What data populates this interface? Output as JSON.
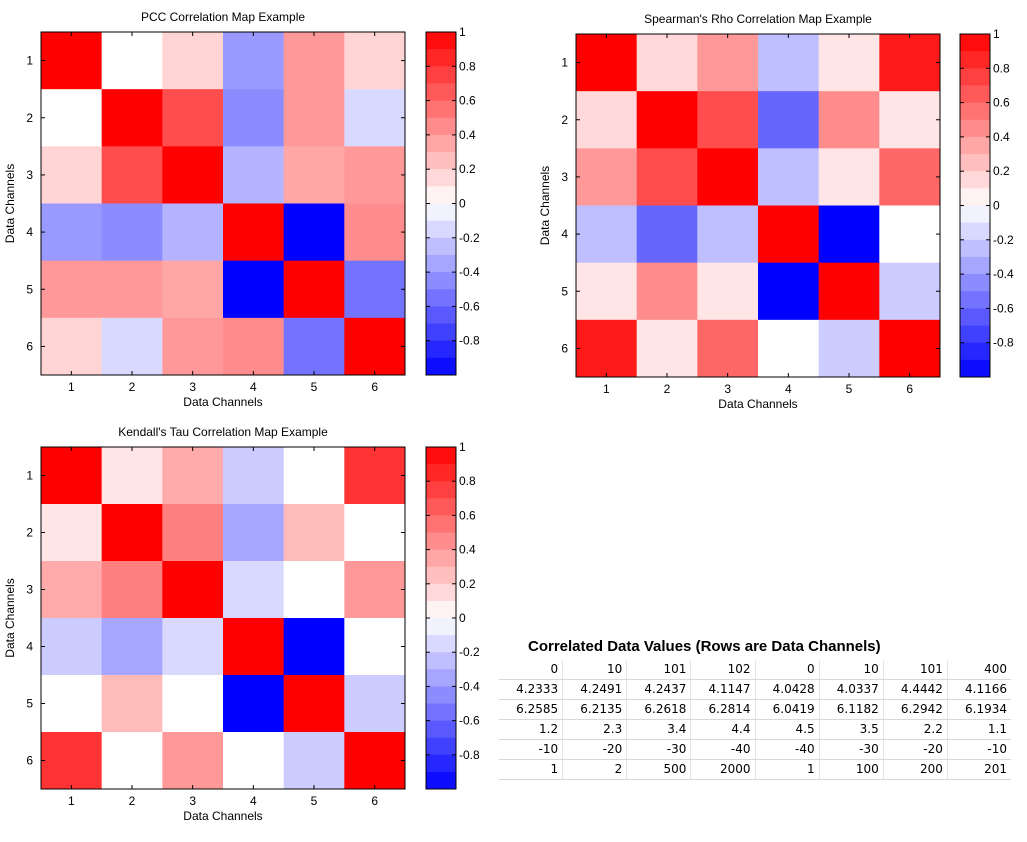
{
  "chart_data": [
    {
      "type": "heatmap",
      "title": "PCC Correlation Map Example",
      "xlabel": "Data Channels",
      "ylabel": "Data Channels",
      "x_ticks": [
        "1",
        "2",
        "3",
        "4",
        "5",
        "6"
      ],
      "y_ticks": [
        "1",
        "2",
        "3",
        "4",
        "5",
        "6"
      ],
      "colorbar_ticks": [
        "1",
        "0.8",
        "0.6",
        "0.4",
        "0.2",
        "0",
        "-0.2",
        "-0.4",
        "-0.6",
        "-0.8"
      ],
      "colorbar_range": [
        -1,
        1
      ],
      "colormap": {
        "low": "#0000ff",
        "mid": "#ffffff",
        "high": "#ff0000"
      },
      "values": [
        [
          1.0,
          0.0,
          0.17,
          -0.4,
          0.4,
          0.17
        ],
        [
          0.0,
          1.0,
          0.7,
          -0.45,
          0.4,
          -0.15
        ],
        [
          0.17,
          0.7,
          1.0,
          -0.3,
          0.35,
          0.4
        ],
        [
          -0.4,
          -0.45,
          -0.3,
          1.0,
          -1.0,
          0.45
        ],
        [
          0.4,
          0.4,
          0.35,
          -1.0,
          1.0,
          -0.55
        ],
        [
          0.17,
          -0.15,
          0.4,
          0.45,
          -0.55,
          1.0
        ]
      ]
    },
    {
      "type": "heatmap",
      "title": "Spearman's Rho Correlation Map Example",
      "xlabel": "Data Channels",
      "ylabel": "Data Channels",
      "x_ticks": [
        "1",
        "2",
        "3",
        "4",
        "5",
        "6"
      ],
      "y_ticks": [
        "1",
        "2",
        "3",
        "4",
        "5",
        "6"
      ],
      "colorbar_ticks": [
        "1",
        "0.8",
        "0.6",
        "0.4",
        "0.2",
        "0",
        "-0.2",
        "-0.4",
        "-0.6",
        "-0.8"
      ],
      "colorbar_range": [
        -1,
        1
      ],
      "colormap": {
        "low": "#0000ff",
        "mid": "#ffffff",
        "high": "#ff0000"
      },
      "values": [
        [
          1.0,
          0.15,
          0.4,
          -0.25,
          0.1,
          0.9
        ],
        [
          0.15,
          1.0,
          0.7,
          -0.6,
          0.45,
          0.1
        ],
        [
          0.4,
          0.7,
          1.0,
          -0.25,
          0.1,
          0.6
        ],
        [
          -0.25,
          -0.6,
          -0.25,
          1.0,
          -1.0,
          0.0
        ],
        [
          0.1,
          0.45,
          0.1,
          -1.0,
          1.0,
          -0.2
        ],
        [
          0.9,
          0.1,
          0.6,
          0.0,
          -0.2,
          1.0
        ]
      ]
    },
    {
      "type": "heatmap",
      "title": "Kendall's Tau Correlation Map Example",
      "xlabel": "Data Channels",
      "ylabel": "Data Channels",
      "x_ticks": [
        "1",
        "2",
        "3",
        "4",
        "5",
        "6"
      ],
      "y_ticks": [
        "1",
        "2",
        "3",
        "4",
        "5",
        "6"
      ],
      "colorbar_ticks": [
        "1",
        "0.8",
        "0.6",
        "0.4",
        "0.2",
        "0",
        "-0.2",
        "-0.4",
        "-0.6",
        "-0.8"
      ],
      "colorbar_range": [
        -1,
        1
      ],
      "colormap": {
        "low": "#0000ff",
        "mid": "#ffffff",
        "high": "#ff0000"
      },
      "values": [
        [
          1.0,
          0.1,
          0.33,
          -0.2,
          0.0,
          0.8
        ],
        [
          0.1,
          1.0,
          0.5,
          -0.35,
          0.27,
          0.0
        ],
        [
          0.33,
          0.5,
          1.0,
          -0.15,
          0.0,
          0.4
        ],
        [
          -0.2,
          -0.35,
          -0.15,
          1.0,
          -1.0,
          0.0
        ],
        [
          0.0,
          0.27,
          0.0,
          -1.0,
          1.0,
          -0.2
        ],
        [
          0.8,
          0.0,
          0.4,
          0.0,
          -0.2,
          1.0
        ]
      ]
    },
    {
      "type": "table",
      "title": "Correlated Data Values (Rows are Data Channels)",
      "rows": [
        [
          "0",
          "10",
          "101",
          "102",
          "0",
          "10",
          "101",
          "400"
        ],
        [
          "4.2333",
          "4.2491",
          "4.2437",
          "4.1147",
          "4.0428",
          "4.0337",
          "4.4442",
          "4.1166"
        ],
        [
          "6.2585",
          "6.2135",
          "6.2618",
          "6.2814",
          "6.0419",
          "6.1182",
          "6.2942",
          "6.1934"
        ],
        [
          "1.2",
          "2.3",
          "3.4",
          "4.4",
          "4.5",
          "3.5",
          "2.2",
          "1.1"
        ],
        [
          "-10",
          "-20",
          "-30",
          "-40",
          "-40",
          "-30",
          "-20",
          "-10"
        ],
        [
          "1",
          "2",
          "500",
          "2000",
          "1",
          "100",
          "200",
          "201"
        ]
      ]
    }
  ]
}
